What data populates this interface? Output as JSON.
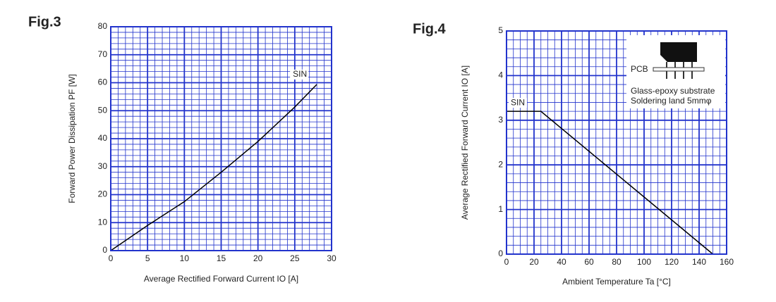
{
  "chart_data": [
    {
      "type": "line",
      "title": "Fig.3",
      "x_label": "Average Rectified Forward Current IO [A]",
      "y_label": "Forward Power Dissipation PF [W]",
      "x": [
        0,
        5,
        10,
        15,
        20,
        25,
        28
      ],
      "series": [
        {
          "name": "SIN",
          "color": "#000000",
          "values": [
            0,
            9,
            17.5,
            28,
            39,
            51.3,
            59.4
          ]
        }
      ],
      "xlim": [
        0,
        30
      ],
      "xticks": [
        0,
        5,
        10,
        15,
        20,
        25,
        30
      ],
      "ylim": [
        0,
        80
      ],
      "yticks": [
        0,
        10,
        20,
        30,
        40,
        50,
        60,
        70,
        80
      ],
      "grid": true,
      "grid_color": "#2233cc",
      "minor_grid": {
        "x": 5,
        "y": 5
      }
    },
    {
      "type": "line",
      "title": "Fig.4",
      "x_label": "Ambient Temperature Ta [°C]",
      "y_label": "Average Rectified Forward Current IO [A]",
      "x": [
        0,
        25,
        150
      ],
      "series": [
        {
          "name": "SIN",
          "color": "#000000",
          "values": [
            3.2,
            3.2,
            0
          ]
        }
      ],
      "xlim": [
        0,
        160
      ],
      "xticks": [
        0,
        20,
        40,
        60,
        80,
        100,
        120,
        140,
        160
      ],
      "ylim": [
        0,
        5
      ],
      "yticks": [
        0,
        1,
        2,
        3,
        4,
        5
      ],
      "grid": true,
      "grid_color": "#2233cc",
      "minor_grid": {
        "x": 4,
        "y": 5
      },
      "annotations": [
        "PCB",
        "Glass-epoxy substrate",
        "Soldering land 5mmφ"
      ]
    }
  ]
}
